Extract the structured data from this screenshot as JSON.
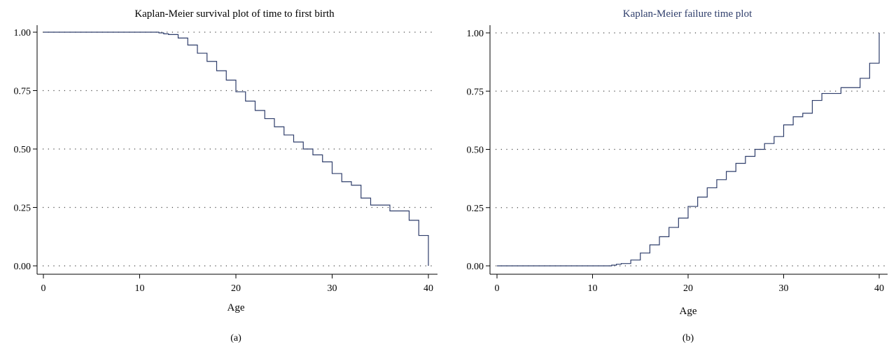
{
  "figure": {
    "panels": [
      {
        "title": "Kaplan-Meier survival plot of time to first birth",
        "caption": "(a)",
        "title_color": "#000000"
      },
      {
        "title": "Kaplan-Meier failure time plot",
        "caption": "(b)",
        "title_color": "#2f3e6b"
      }
    ]
  },
  "chart_data": [
    {
      "type": "line",
      "step": true,
      "title": "Kaplan-Meier survival plot of time to first birth",
      "xlabel": "Age",
      "ylabel": "",
      "xlim": [
        0,
        40
      ],
      "ylim": [
        0,
        1
      ],
      "xticks": [
        "0",
        "10",
        "20",
        "30",
        "40"
      ],
      "yticks": [
        "0.00",
        "0.25",
        "0.50",
        "0.75",
        "1.00"
      ],
      "grid": "horizontal dotted",
      "line_color": "#2f3e6b",
      "series": [
        {
          "x": [
            0,
            12,
            12.5,
            13,
            14,
            15,
            16,
            17,
            18,
            19,
            20,
            21,
            22,
            23,
            24,
            25,
            26,
            27,
            28,
            29,
            30,
            31,
            32,
            33,
            34,
            35,
            36,
            37,
            38,
            39,
            40
          ],
          "y": [
            1.0,
            0.997,
            0.993,
            0.99,
            0.975,
            0.945,
            0.91,
            0.875,
            0.835,
            0.795,
            0.745,
            0.705,
            0.665,
            0.63,
            0.595,
            0.56,
            0.53,
            0.5,
            0.475,
            0.445,
            0.395,
            0.36,
            0.345,
            0.29,
            0.26,
            0.26,
            0.235,
            0.235,
            0.195,
            0.13,
            0.0
          ]
        }
      ]
    },
    {
      "type": "line",
      "step": true,
      "title": "Kaplan-Meier failure time plot",
      "xlabel": "Age",
      "ylabel": "",
      "xlim": [
        0,
        40
      ],
      "ylim": [
        0,
        1
      ],
      "xticks": [
        "0",
        "10",
        "20",
        "30",
        "40"
      ],
      "yticks": [
        "0.00",
        "0.25",
        "0.50",
        "0.75",
        "1.00"
      ],
      "grid": "horizontal dotted",
      "line_color": "#2f3e6b",
      "series": [
        {
          "x": [
            0,
            12,
            12.5,
            13,
            14,
            15,
            16,
            17,
            18,
            19,
            20,
            21,
            22,
            23,
            24,
            25,
            26,
            27,
            28,
            29,
            30,
            31,
            32,
            33,
            34,
            35,
            36,
            37,
            38,
            39,
            40
          ],
          "y": [
            0.0,
            0.003,
            0.007,
            0.01,
            0.025,
            0.055,
            0.09,
            0.125,
            0.165,
            0.205,
            0.255,
            0.295,
            0.335,
            0.37,
            0.405,
            0.44,
            0.47,
            0.5,
            0.525,
            0.555,
            0.605,
            0.64,
            0.655,
            0.71,
            0.74,
            0.74,
            0.765,
            0.765,
            0.805,
            0.87,
            1.0
          ]
        }
      ]
    }
  ]
}
